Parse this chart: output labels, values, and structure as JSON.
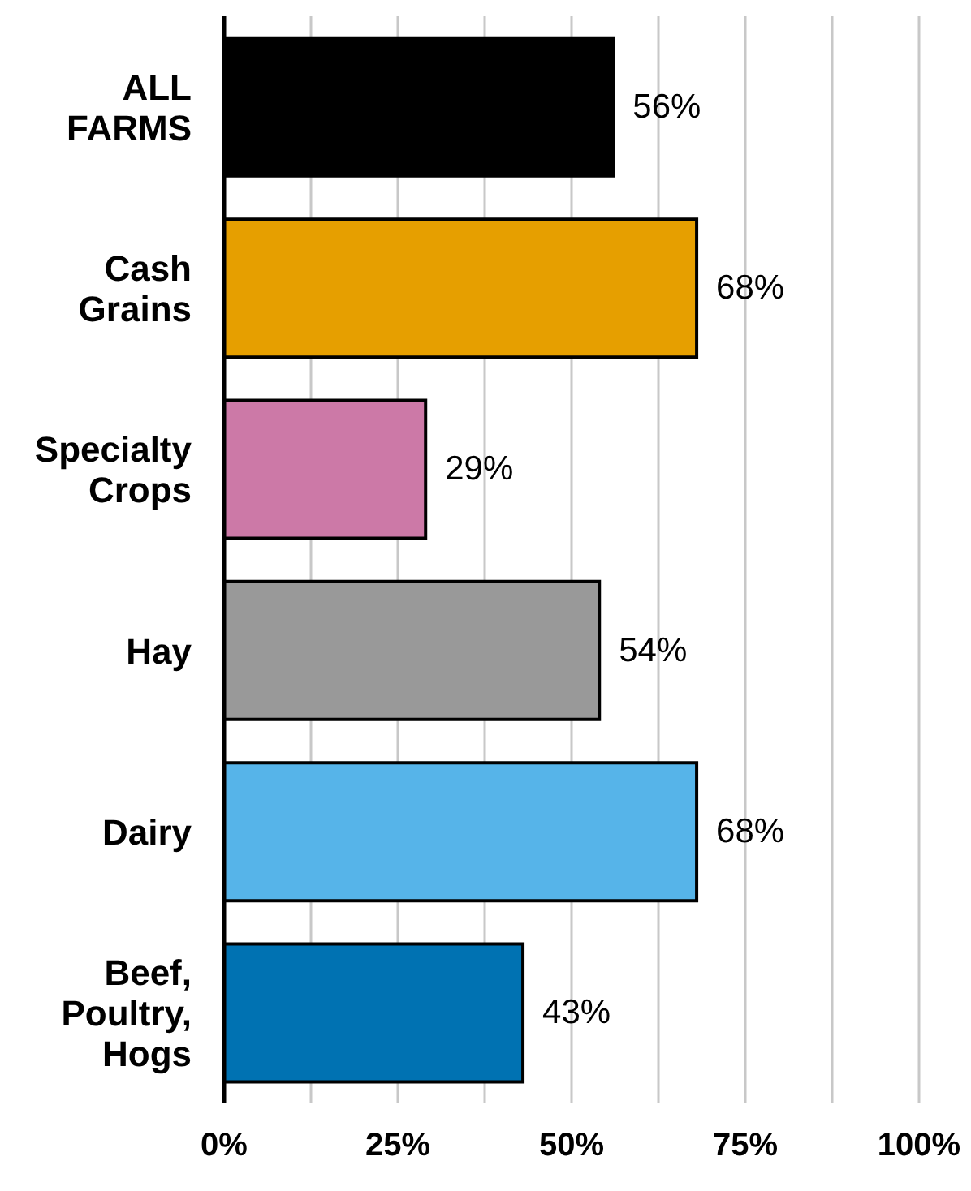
{
  "chart_data": {
    "type": "bar",
    "orientation": "horizontal",
    "categories": [
      "ALL FARMS",
      "Cash Grains",
      "Specialty Crops",
      "Hay",
      "Dairy",
      "Beef, Poultry, Hogs"
    ],
    "values": [
      56,
      68,
      29,
      54,
      68,
      43
    ],
    "colors": [
      "#000000",
      "#e69f00",
      "#cc79a7",
      "#999999",
      "#56b4e9",
      "#0072b2"
    ],
    "value_labels": [
      "56%",
      "68%",
      "29%",
      "54%",
      "68%",
      "43%"
    ],
    "xlim": [
      0,
      100
    ],
    "xticks": [
      {
        "value": 0,
        "label": "0%"
      },
      {
        "value": 12.5,
        "label": null
      },
      {
        "value": 25,
        "label": "25%"
      },
      {
        "value": 37.5,
        "label": null
      },
      {
        "value": 50,
        "label": "50%"
      },
      {
        "value": 62.5,
        "label": null
      },
      {
        "value": 75,
        "label": "75%"
      },
      {
        "value": 87.5,
        "label": null
      },
      {
        "value": 100,
        "label": "100%"
      }
    ],
    "grid": "x"
  }
}
